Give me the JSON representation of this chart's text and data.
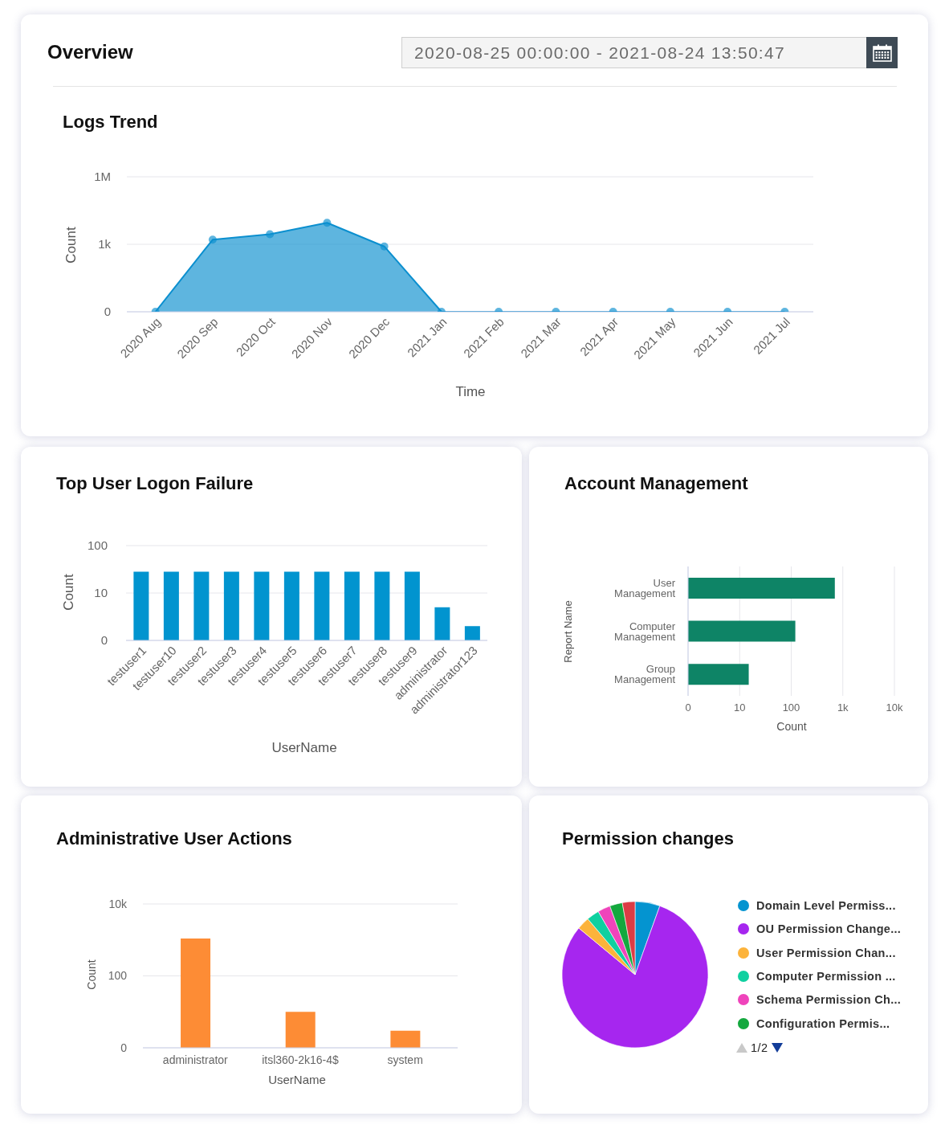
{
  "chart_data": [
    {
      "type": "other",
      "title": "Overview",
      "annotations": [
        "2020-08-25 00:00:00 - 2021-08-24 13:50:47"
      ]
    },
    {
      "type": "area",
      "title": "Logs Trend",
      "xlabel": "Time",
      "ylabel": "Count",
      "categories": [
        "2020 Aug",
        "2020 Sep",
        "2020 Oct",
        "2020 Nov",
        "2020 Dec",
        "2021 Jan",
        "2021 Feb",
        "2021 Mar",
        "2021 Apr",
        "2021 May",
        "2021 Jun",
        "2021 Jul"
      ],
      "values": [
        1,
        1600,
        2800,
        9000,
        800,
        1,
        1,
        1,
        1,
        1,
        1,
        1
      ],
      "color": "#0b8fcf",
      "log": "y",
      "ylim": [
        0,
        1000000
      ],
      "yticks": [
        0,
        {
          "value": 1000,
          "label": "1k"
        },
        {
          "value": 1000000,
          "label": "1M"
        }
      ],
      "grid": "y",
      "marker": "circle"
    },
    {
      "type": "bar",
      "title": "Top User Logon Failure",
      "xlabel": "UserName",
      "ylabel": "Count",
      "categories": [
        "testuser1",
        "testuser10",
        "testuser2",
        "testuser3",
        "testuser4",
        "testuser5",
        "testuser6",
        "testuser7",
        "testuser8",
        "testuser9",
        "administrator",
        "administrator123"
      ],
      "values": [
        28,
        28,
        28,
        28,
        28,
        28,
        28,
        28,
        28,
        28,
        5,
        2
      ],
      "color": "#0194cf",
      "log": "y",
      "ylim": [
        0,
        100
      ],
      "yticks": [
        0,
        10,
        100
      ],
      "grid": "y"
    },
    {
      "type": "bar",
      "orientation": "horizontal",
      "title": "Account Management",
      "xlabel": "Count",
      "ylabel": "Report Name",
      "categories": [
        "User Management",
        "Computer Management",
        "Group Management"
      ],
      "values": [
        700,
        120,
        15
      ],
      "color": "#0e8466",
      "log": "x",
      "xlim": [
        0,
        10000
      ],
      "xticks": [
        0,
        10,
        100,
        {
          "value": 1000,
          "label": "1k"
        },
        {
          "value": 10000,
          "label": "10k"
        }
      ],
      "grid": "x"
    },
    {
      "type": "bar",
      "title": "Administrative User Actions",
      "xlabel": "UserName",
      "ylabel": "Count",
      "categories": [
        "administrator",
        "itsl360-2k16-4$",
        "system"
      ],
      "values": [
        1100,
        10,
        3
      ],
      "color": "#fd8c35",
      "log": "y",
      "ylim": [
        0,
        10000
      ],
      "yticks": [
        0,
        100,
        {
          "value": 10000,
          "label": "10k"
        }
      ],
      "grid": "y"
    },
    {
      "type": "pie",
      "title": "Permission changes",
      "categories": [
        "Domain Level Permiss...",
        "OU Permission Change...",
        "User Permission Chan...",
        "Computer Permission ...",
        "Schema Permission Ch...",
        "Configuration Permis...",
        null
      ],
      "values": [
        5.5,
        80.5,
        2.8,
        2.8,
        2.8,
        2.8,
        2.8
      ],
      "colors": [
        "#0494d0",
        "#a626ef",
        "#fcb33b",
        "#0fd0a0",
        "#ef44bb",
        "#14a83e",
        "#dc3c45"
      ],
      "legend": "right",
      "annotations": [
        "1/2"
      ]
    }
  ]
}
